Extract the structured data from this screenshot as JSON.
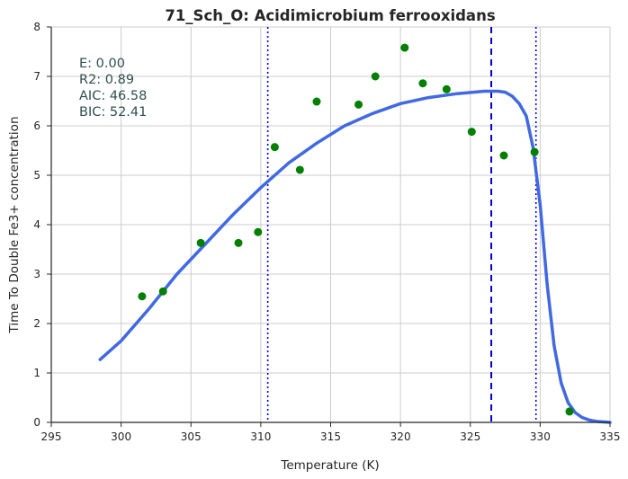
{
  "chart_data": {
    "type": "scatter",
    "title": "71_Sch_O: Acidimicrobium ferrooxidans",
    "xlabel": "Temperature (K)",
    "ylabel": "Time To Double Fe3+ concentration",
    "xlim": [
      295,
      335
    ],
    "ylim": [
      0,
      8
    ],
    "xticks": [
      "295",
      "300",
      "305",
      "310",
      "315",
      "320",
      "325",
      "330",
      "335"
    ],
    "yticks": [
      "0",
      "1",
      "2",
      "3",
      "4",
      "5",
      "6",
      "7",
      "8"
    ],
    "grid": true,
    "series": [
      {
        "type": "scatter",
        "color": "#008000",
        "x": [
          301.5,
          303.0,
          305.7,
          308.4,
          309.8,
          311.0,
          312.8,
          314.0,
          317.0,
          318.2,
          320.3,
          321.6,
          323.3,
          325.1,
          327.4,
          329.6,
          332.1
        ],
        "y": [
          2.55,
          2.65,
          3.63,
          3.63,
          3.85,
          5.57,
          5.11,
          6.49,
          6.43,
          7.0,
          7.58,
          6.86,
          6.74,
          5.88,
          5.4,
          5.47,
          0.22
        ]
      },
      {
        "type": "line",
        "color": "#4169e1",
        "x": [
          298.5,
          300,
          302,
          304,
          306,
          308,
          310,
          312,
          314,
          316,
          318,
          320,
          322,
          324,
          326,
          327,
          327.5,
          328,
          328.5,
          329,
          329.5,
          330,
          330.5,
          331,
          331.5,
          332,
          332.5,
          333,
          333.5,
          334,
          335
        ],
        "y": [
          1.27,
          1.65,
          2.3,
          3.0,
          3.6,
          4.2,
          4.75,
          5.25,
          5.65,
          6.0,
          6.25,
          6.45,
          6.57,
          6.65,
          6.7,
          6.7,
          6.68,
          6.6,
          6.45,
          6.2,
          5.55,
          4.4,
          2.8,
          1.55,
          0.8,
          0.4,
          0.2,
          0.1,
          0.05,
          0.02,
          0.0
        ]
      }
    ],
    "vlines": [
      {
        "x": 310.5,
        "style": "dotted",
        "color": "#0000ff"
      },
      {
        "x": 326.5,
        "style": "dashed",
        "color": "#0000cd"
      },
      {
        "x": 329.7,
        "style": "dotted",
        "color": "#0000ff"
      }
    ],
    "annotations": [
      {
        "label": "E:  0.00"
      },
      {
        "label": "R2:  0.89"
      },
      {
        "label": "AIC: 46.58"
      },
      {
        "label": "BIC: 52.41"
      }
    ]
  }
}
